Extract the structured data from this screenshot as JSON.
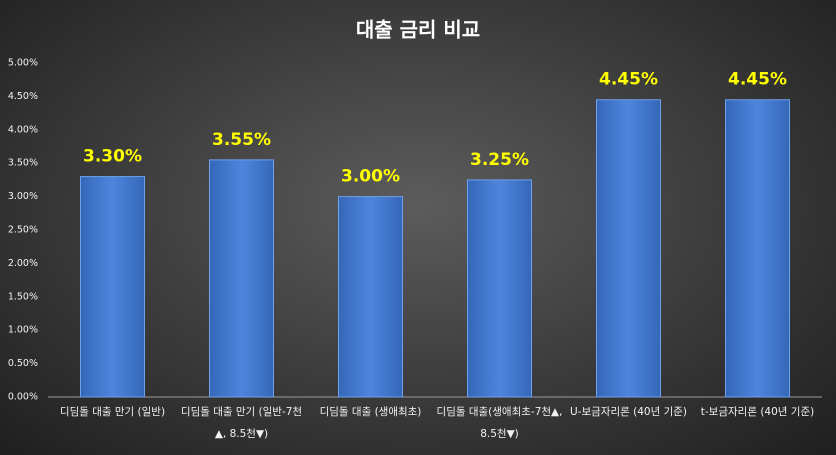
{
  "chart_data": {
    "type": "bar",
    "title": "대출 금리 비교",
    "categories": [
      "디딤돌 대출 만기 (일반)",
      "디딤돌 대출 만기 (일반-7천▲, 8.5천▼)",
      "디딤돌 대출 (생애최초)",
      "디딤돌 대출(생애최초-7천▲, 8.5천▼)",
      "U-보금자리론 (40년 기준)",
      "t-보금자리론 (40년 기준)"
    ],
    "values": [
      3.3,
      3.55,
      3.0,
      3.25,
      4.45,
      4.45
    ],
    "value_labels": [
      "3.30%",
      "3.55%",
      "3.00%",
      "3.25%",
      "4.45%",
      "4.45%"
    ],
    "color": "#4a80d4",
    "ylim": [
      0,
      5
    ],
    "yticks": [
      {
        "value": 0,
        "label": "0.00%"
      },
      {
        "value": 0.5,
        "label": "0.50%"
      },
      {
        "value": 1,
        "label": "1.00%"
      },
      {
        "value": 1.5,
        "label": "1.50%"
      },
      {
        "value": 2,
        "label": "2.00%"
      },
      {
        "value": 2.5,
        "label": "2.50%"
      },
      {
        "value": 3,
        "label": "3.00%"
      },
      {
        "value": 3.5,
        "label": "3.50%"
      },
      {
        "value": 4,
        "label": "4.00%"
      },
      {
        "value": 4.5,
        "label": "4.50%"
      },
      {
        "value": 5,
        "label": "5.00%"
      }
    ],
    "grid": false
  }
}
